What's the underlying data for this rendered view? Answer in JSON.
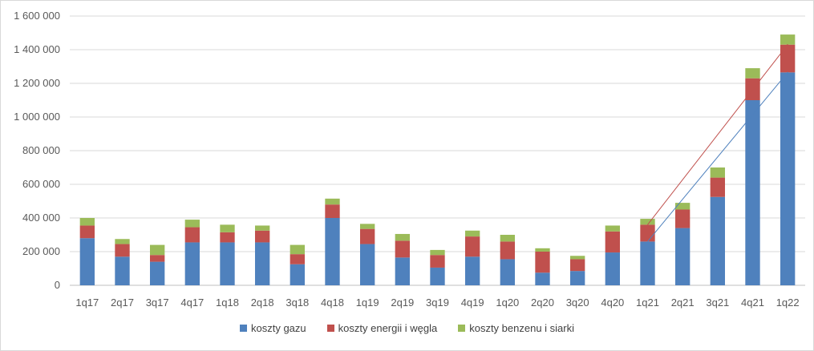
{
  "chart_data": {
    "type": "bar",
    "stacked": true,
    "title": "",
    "xlabel": "",
    "ylabel": "",
    "ylim": [
      0,
      1600000
    ],
    "yticks": [
      0,
      200000,
      400000,
      600000,
      800000,
      1000000,
      1200000,
      1400000,
      1600000
    ],
    "ytick_labels": [
      "0",
      "200 000",
      "400 000",
      "600 000",
      "800 000",
      "1 000 000",
      "1 200 000",
      "1 400 000",
      "1 600 000"
    ],
    "grid": "horizontal",
    "legend_position": "bottom",
    "categories": [
      "1q17",
      "2q17",
      "3q17",
      "4q17",
      "1q18",
      "2q18",
      "3q18",
      "4q18",
      "1q19",
      "2q19",
      "3q19",
      "4q19",
      "1q20",
      "2q20",
      "3q20",
      "4q20",
      "1q21",
      "2q21",
      "3q21",
      "4q21",
      "1q22"
    ],
    "series": [
      {
        "name": "koszty gazu",
        "color": "#4f81bd",
        "values": [
          280000,
          170000,
          140000,
          255000,
          255000,
          255000,
          125000,
          400000,
          245000,
          165000,
          105000,
          170000,
          155000,
          75000,
          85000,
          195000,
          260000,
          340000,
          525000,
          1100000,
          1265000
        ]
      },
      {
        "name": "koszty energii i węgla",
        "color": "#c0504d",
        "values": [
          75000,
          75000,
          40000,
          90000,
          60000,
          70000,
          60000,
          80000,
          90000,
          100000,
          75000,
          120000,
          105000,
          125000,
          70000,
          125000,
          100000,
          110000,
          115000,
          130000,
          165000
        ]
      },
      {
        "name": "koszty benzenu i siarki",
        "color": "#9bbb59",
        "values": [
          45000,
          30000,
          60000,
          45000,
          45000,
          30000,
          55000,
          35000,
          30000,
          40000,
          30000,
          35000,
          40000,
          20000,
          20000,
          35000,
          35000,
          40000,
          60000,
          60000,
          60000
        ]
      }
    ],
    "annotations": [
      {
        "type": "arrow",
        "color": "#c0504d",
        "from": {
          "x": "1q21",
          "y": 360000
        },
        "to": {
          "x": "1q22",
          "y": 1430000
        }
      },
      {
        "type": "arrow",
        "color": "#4f81bd",
        "from": {
          "x": "1q21",
          "y": 260000
        },
        "to": {
          "x": "1q22",
          "y": 1265000
        }
      }
    ]
  }
}
